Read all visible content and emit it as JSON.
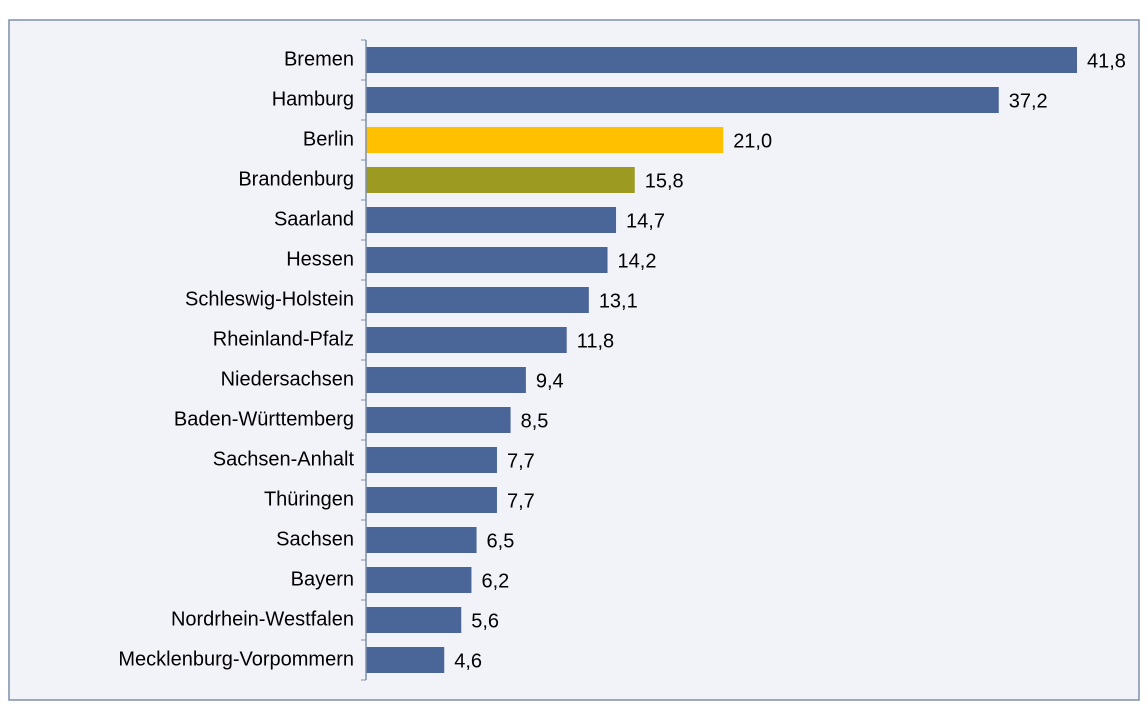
{
  "chart_data": {
    "type": "bar",
    "orientation": "horizontal",
    "categories": [
      "Bremen",
      "Hamburg",
      "Berlin",
      "Brandenburg",
      "Saarland",
      "Hessen",
      "Schleswig-Holstein",
      "Rheinland-Pfalz",
      "Niedersachsen",
      "Baden-Württemberg",
      "Sachsen-Anhalt",
      "Thüringen",
      "Sachsen",
      "Bayern",
      "Nordrhein-Westfalen",
      "Mecklenburg-Vorpommern"
    ],
    "values": [
      41.8,
      37.2,
      21.0,
      15.8,
      14.7,
      14.2,
      13.1,
      11.8,
      9.4,
      8.5,
      7.7,
      7.7,
      6.5,
      6.2,
      5.6,
      4.6
    ],
    "value_labels": [
      "41,8",
      "37,2",
      "21,0",
      "15,8",
      "14,7",
      "14,2",
      "13,1",
      "11,8",
      "9,4",
      "8,5",
      "7,7",
      "7,7",
      "6,5",
      "6,2",
      "5,6",
      "4,6"
    ],
    "colors": [
      "#4a6699",
      "#4a6699",
      "#ffc000",
      "#9c9a21",
      "#4a6699",
      "#4a6699",
      "#4a6699",
      "#4a6699",
      "#4a6699",
      "#4a6699",
      "#4a6699",
      "#4a6699",
      "#4a6699",
      "#4a6699",
      "#4a6699",
      "#4a6699"
    ]
  }
}
